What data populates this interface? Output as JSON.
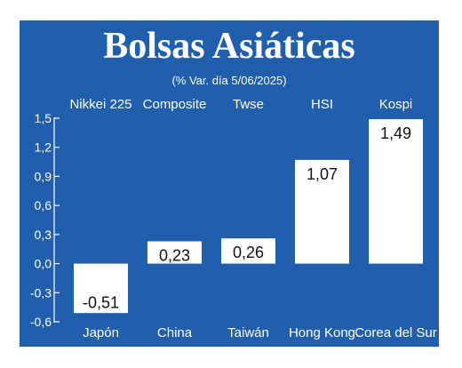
{
  "title": "Bolsas Asiáticas",
  "subtitle": "(% Var. día 5/06/2025)",
  "colors": {
    "background": "#1f5fae",
    "bar": "#ffffff",
    "text": "#ffffff",
    "value_text": "#111111"
  },
  "chart_data": {
    "type": "bar",
    "categories": [
      "Japón",
      "China",
      "Taiwán",
      "Hong Kong",
      "Corea del Sur"
    ],
    "index_names": [
      "Nikkei 225",
      "Composite",
      "Twse",
      "HSI",
      "Kospi"
    ],
    "values": [
      -0.51,
      0.23,
      0.26,
      1.07,
      1.49
    ],
    "value_labels": [
      "-0,51",
      "0,23",
      "0,26",
      "1,07",
      "1,49"
    ],
    "y_ticks": [
      "1,5",
      "1,2",
      "0,9",
      "0,6",
      "0,3",
      "0,0",
      "-0,3",
      "-0,6"
    ],
    "ylim": [
      -0.6,
      1.5
    ],
    "title": "Bolsas Asiáticas",
    "subtitle": "(% Var. día 5/06/2025)",
    "xlabel": "",
    "ylabel": "",
    "grid": false,
    "legend": "none"
  }
}
